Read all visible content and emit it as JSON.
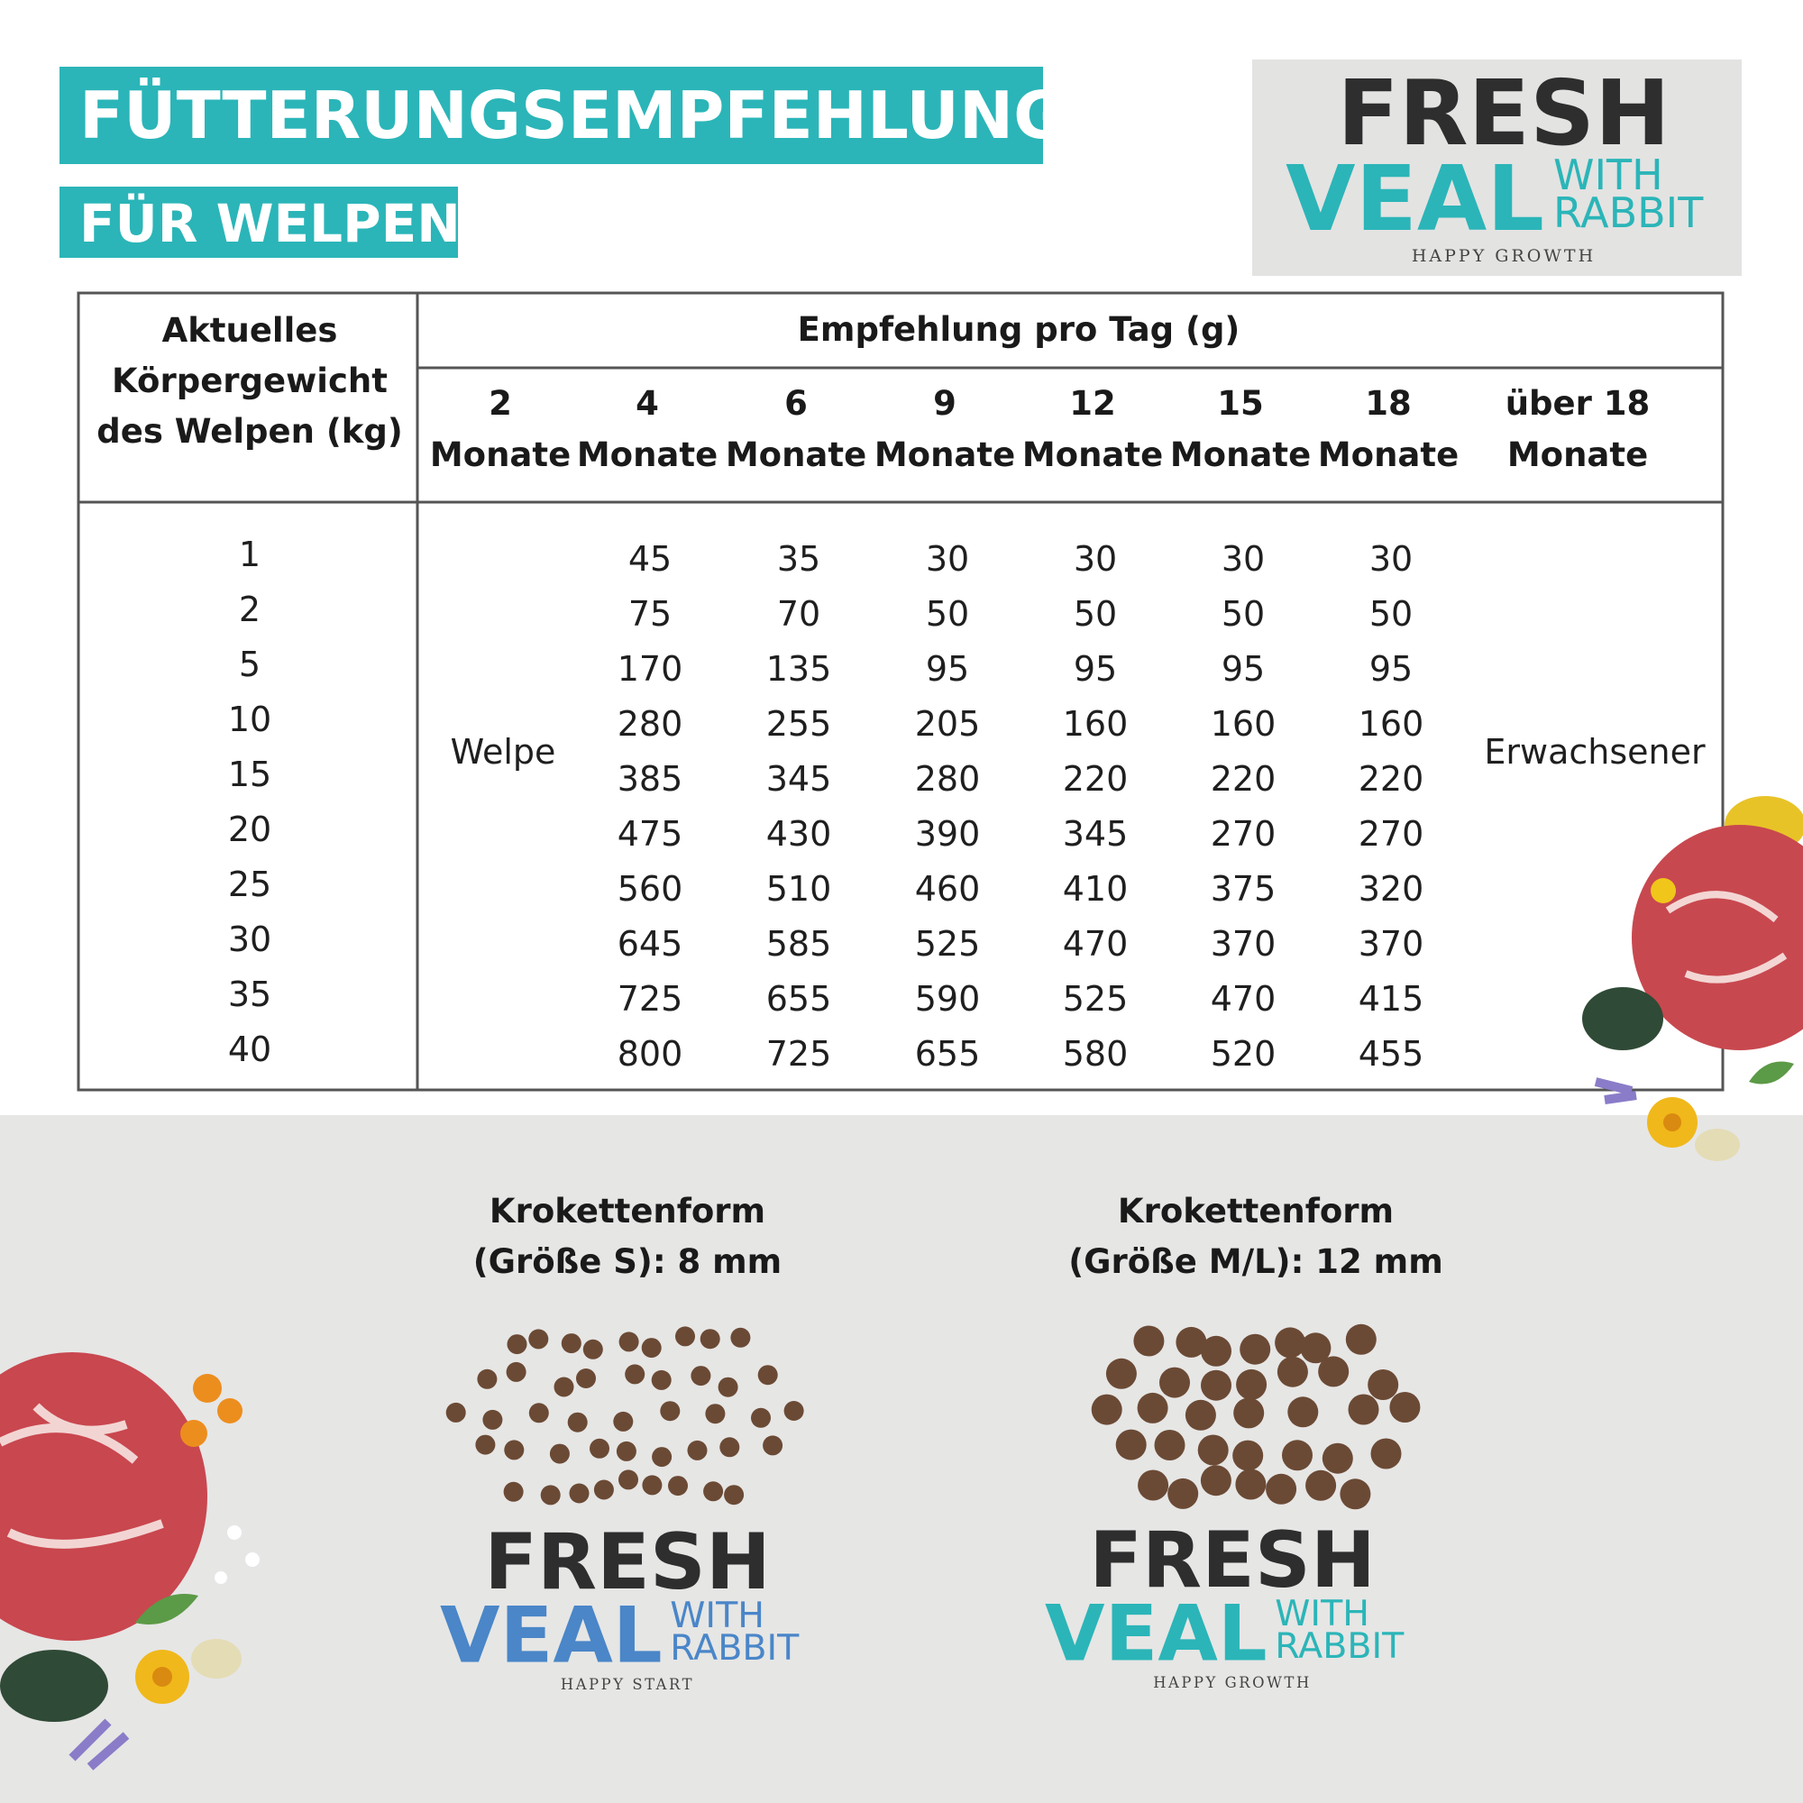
{
  "header": {
    "title": "FÜTTERUNGSEMPFEHLUNG",
    "subtitle": "FÜR WELPEN"
  },
  "logo_top": {
    "brand": "FRESH",
    "product": "VEAL",
    "with": "WITH",
    "flavor": "RABBIT",
    "tagline": "HAPPY GROWTH"
  },
  "table": {
    "weight_header": [
      "Aktuelles",
      "Körpergewicht",
      "des Welpen (kg)"
    ],
    "group_header": "Empfehlung pro Tag (g)",
    "columns": [
      {
        "top": "2",
        "bottom": "Monate"
      },
      {
        "top": "4",
        "bottom": "Monate"
      },
      {
        "top": "6",
        "bottom": "Monate"
      },
      {
        "top": "9",
        "bottom": "Monate"
      },
      {
        "top": "12",
        "bottom": "Monate"
      },
      {
        "top": "15",
        "bottom": "Monate"
      },
      {
        "top": "18",
        "bottom": "Monate"
      },
      {
        "top": "über 18",
        "bottom": "Monate"
      }
    ],
    "puppy_label": "Welpe",
    "adult_label": "Erwachsener",
    "rows": [
      {
        "weight": 1,
        "values": [
          45,
          35,
          30,
          30,
          30,
          30
        ]
      },
      {
        "weight": 2,
        "values": [
          75,
          70,
          50,
          50,
          50,
          50
        ]
      },
      {
        "weight": 5,
        "values": [
          170,
          135,
          95,
          95,
          95,
          95
        ]
      },
      {
        "weight": 10,
        "values": [
          280,
          255,
          205,
          160,
          160,
          160
        ]
      },
      {
        "weight": 15,
        "values": [
          385,
          345,
          280,
          220,
          220,
          220
        ]
      },
      {
        "weight": 20,
        "values": [
          475,
          430,
          390,
          345,
          270,
          270
        ]
      },
      {
        "weight": 25,
        "values": [
          560,
          510,
          460,
          410,
          375,
          320
        ]
      },
      {
        "weight": 30,
        "values": [
          645,
          585,
          525,
          470,
          370,
          370
        ]
      },
      {
        "weight": 35,
        "values": [
          725,
          655,
          590,
          525,
          470,
          415
        ]
      },
      {
        "weight": 40,
        "values": [
          800,
          725,
          655,
          580,
          520,
          455
        ]
      }
    ]
  },
  "kibbles": [
    {
      "title": "Krokettenform",
      "size": "(Größe S): 8 mm",
      "logo": {
        "brand": "FRESH",
        "product": "VEAL",
        "with": "WITH",
        "flavor": "RABBIT",
        "tagline": "HAPPY START"
      }
    },
    {
      "title": "Krokettenform",
      "size": "(Größe M/L): 12 mm",
      "logo": {
        "brand": "FRESH",
        "product": "VEAL",
        "with": "WITH",
        "flavor": "RABBIT",
        "tagline": "HAPPY GROWTH"
      }
    }
  ]
}
